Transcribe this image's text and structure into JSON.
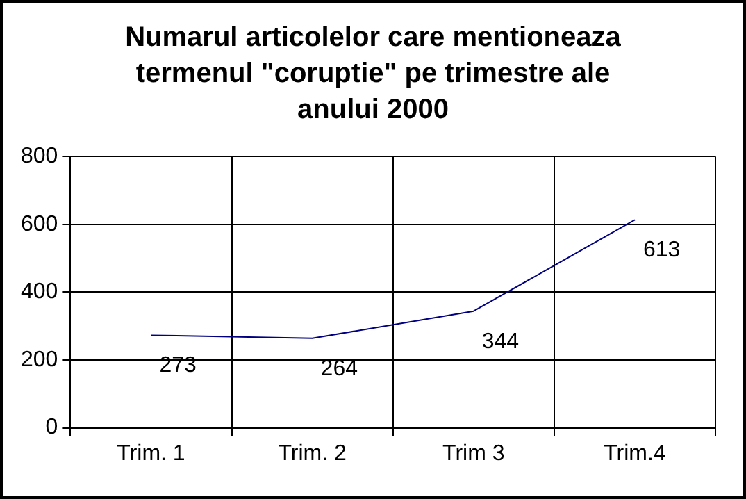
{
  "chart_data": {
    "type": "line",
    "title": "Numarul articolelor care mentioneaza termenul \"coruptie\" pe trimestre ale anului 2000",
    "categories": [
      "Trim. 1",
      "Trim. 2",
      "Trim 3",
      "Trim.4"
    ],
    "series": [
      {
        "color": "#000080",
        "values": [
          273,
          264,
          344,
          613
        ]
      }
    ],
    "ylim": [
      0,
      800
    ],
    "yticks": [
      0,
      200,
      400,
      600,
      800
    ],
    "grid": true,
    "data_labels": true,
    "legend": false,
    "marker": "none"
  }
}
